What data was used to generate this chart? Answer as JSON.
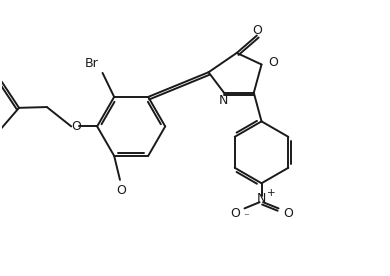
{
  "bg_color": "#ffffff",
  "line_color": "#1a1a1a",
  "line_width": 1.4,
  "figsize": [
    3.9,
    2.76
  ],
  "dpi": 100,
  "xlim": [
    0,
    10
  ],
  "ylim": [
    0,
    7.1
  ]
}
